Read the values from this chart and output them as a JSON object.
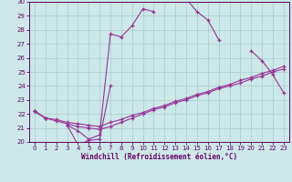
{
  "xlabel": "Windchill (Refroidissement éolien,°C)",
  "x": [
    0,
    1,
    2,
    3,
    4,
    5,
    6,
    7,
    8,
    9,
    10,
    11,
    12,
    13,
    14,
    15,
    16,
    17,
    18,
    19,
    20,
    21,
    22,
    23
  ],
  "line_upper": [
    22.2,
    21.7,
    null,
    21.2,
    20.8,
    20.2,
    20.5,
    27.7,
    27.5,
    28.3,
    29.5,
    29.3,
    null,
    null,
    30.2,
    29.3,
    28.7,
    27.3,
    null,
    null,
    26.5,
    25.8,
    24.8,
    23.5
  ],
  "line_bottom": [
    22.2,
    21.7,
    null,
    21.2,
    19.8,
    20.1,
    20.2,
    24.0,
    null,
    null,
    null,
    null,
    null,
    null,
    null,
    null,
    null,
    null,
    null,
    null,
    null,
    null,
    null,
    null
  ],
  "line_mid1": [
    22.2,
    21.7,
    21.5,
    21.3,
    21.1,
    21.0,
    20.9,
    21.1,
    21.4,
    21.7,
    22.0,
    22.3,
    22.5,
    22.8,
    23.0,
    23.3,
    23.5,
    23.8,
    24.0,
    24.2,
    24.5,
    24.7,
    25.0,
    25.2
  ],
  "line_mid2": [
    22.2,
    21.7,
    21.6,
    21.4,
    21.3,
    21.2,
    21.1,
    21.4,
    21.6,
    21.9,
    22.1,
    22.4,
    22.6,
    22.9,
    23.1,
    23.4,
    23.6,
    23.9,
    24.1,
    24.4,
    24.6,
    24.9,
    25.1,
    25.4
  ],
  "ylim": [
    20,
    30
  ],
  "xlim": [
    -0.5,
    23.5
  ],
  "yticks": [
    20,
    21,
    22,
    23,
    24,
    25,
    26,
    27,
    28,
    29,
    30
  ],
  "xticks": [
    0,
    1,
    2,
    3,
    4,
    5,
    6,
    7,
    8,
    9,
    10,
    11,
    12,
    13,
    14,
    15,
    16,
    17,
    18,
    19,
    20,
    21,
    22,
    23
  ],
  "line_color": "#993399",
  "bg_color": "#cce8e8",
  "grid_color": "#aacccc",
  "text_color": "#660066",
  "spine_color": "#660066"
}
